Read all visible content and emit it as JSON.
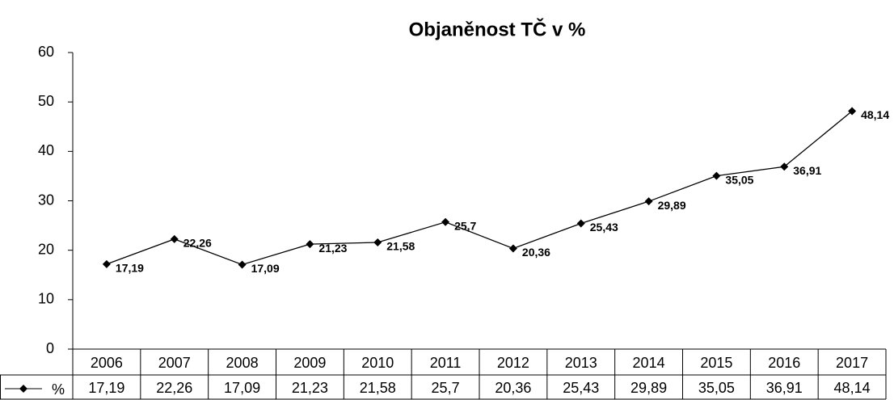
{
  "chart_data": {
    "type": "line",
    "title": "Objaněnost TČ v %",
    "categories": [
      "2006",
      "2007",
      "2008",
      "2009",
      "2010",
      "2011",
      "2012",
      "2013",
      "2014",
      "2015",
      "2016",
      "2017"
    ],
    "series": [
      {
        "name": "%",
        "color": "#000000",
        "values": [
          17.19,
          22.26,
          17.09,
          21.23,
          21.58,
          25.7,
          20.36,
          25.43,
          29.89,
          35.05,
          36.91,
          48.14
        ],
        "value_labels": [
          "17,19",
          "22,26",
          "17,09",
          "21,23",
          "21,58",
          "25,7",
          "20,36",
          "25,43",
          "29,89",
          "35,05",
          "36,91",
          "48,14"
        ]
      }
    ],
    "ylim": [
      0,
      60
    ],
    "yticks": [
      0,
      10,
      20,
      30,
      40,
      50,
      60
    ],
    "grid": false,
    "data_table": true
  }
}
